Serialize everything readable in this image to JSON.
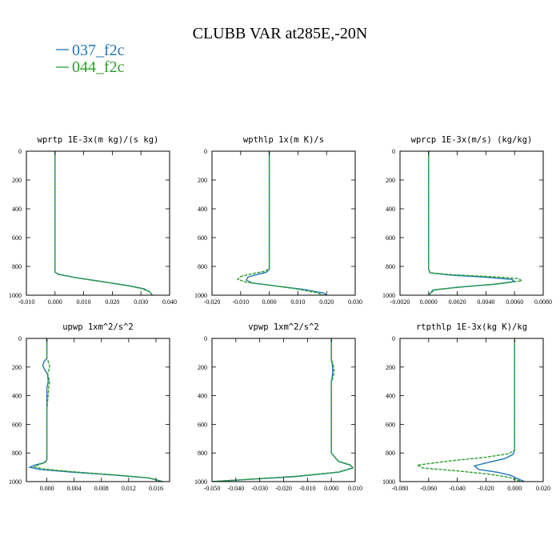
{
  "page": {
    "title": "CLUBB VAR at285E,-20N"
  },
  "legend": [
    {
      "name": "037_f2c",
      "color": "#1f77b4",
      "dash": false
    },
    {
      "name": "044_f2c",
      "color": "#2ca02c",
      "dash": true
    }
  ],
  "chart_data": [
    {
      "type": "line",
      "title": "wprtp  1E-3x(m kg)/(s kg)",
      "xlim": [
        -0.01,
        0.04
      ],
      "ylim": [
        1000,
        0
      ],
      "xticks": [
        "-0.010",
        "0.000",
        "0.010",
        "0.020",
        "0.030",
        "0.040"
      ],
      "xtick_values": [
        -0.01,
        0.0,
        0.01,
        0.02,
        0.03,
        0.04
      ],
      "yticks": [
        "0",
        "200",
        "400",
        "600",
        "800",
        "1000"
      ],
      "ytick_values": [
        0,
        200,
        400,
        600,
        800,
        1000
      ],
      "series": [
        {
          "name": "037_f2c",
          "x": [
            0,
            0,
            0,
            0,
            0,
            0,
            0.001,
            0.008,
            0.018,
            0.026,
            0.031,
            0.033,
            0.034
          ],
          "y": [
            0,
            200,
            400,
            600,
            800,
            840,
            855,
            880,
            910,
            935,
            955,
            975,
            1000
          ]
        },
        {
          "name": "044_f2c",
          "x": [
            0,
            0,
            0,
            0,
            0,
            0,
            0.001,
            0.007,
            0.017,
            0.025,
            0.03,
            0.033,
            0.034
          ],
          "y": [
            0,
            200,
            400,
            600,
            800,
            838,
            852,
            878,
            908,
            933,
            953,
            975,
            1000
          ]
        }
      ]
    },
    {
      "type": "line",
      "title": "wpthlp  1x(m K)/s",
      "xlim": [
        -0.02,
        0.03
      ],
      "ylim": [
        1000,
        0
      ],
      "xticks": [
        "-0.020",
        "-0.010",
        "0.000",
        "0.010",
        "0.020",
        "0.030"
      ],
      "xtick_values": [
        -0.02,
        -0.01,
        0.0,
        0.01,
        0.02,
        0.03
      ],
      "yticks": [
        "0",
        "200",
        "400",
        "600",
        "800",
        "1000"
      ],
      "ytick_values": [
        0,
        200,
        400,
        600,
        800,
        1000
      ],
      "series": [
        {
          "name": "037_f2c",
          "x": [
            0,
            0,
            0,
            0,
            0,
            -0.001,
            -0.005,
            -0.0075,
            -0.008,
            -0.006,
            0.002,
            0.012,
            0.019,
            0.02
          ],
          "y": [
            0,
            200,
            400,
            600,
            820,
            840,
            860,
            875,
            895,
            915,
            935,
            960,
            985,
            1000
          ]
        },
        {
          "name": "044_f2c",
          "x": [
            0,
            0,
            0,
            0,
            0,
            -0.002,
            -0.007,
            -0.01,
            -0.011,
            -0.008,
            0.0,
            0.009,
            0.016,
            0.019
          ],
          "y": [
            0,
            200,
            400,
            600,
            820,
            835,
            855,
            870,
            890,
            910,
            930,
            955,
            980,
            1000
          ]
        }
      ]
    },
    {
      "type": "line",
      "title": "wprcp  1E-3x(m/s) (kg/kg)",
      "xlim": [
        -0.002,
        0.008
      ],
      "ylim": [
        1000,
        0
      ],
      "xticks": [
        "-0.0020",
        "0.0000",
        "0.0020",
        "0.0040",
        "0.0060",
        "0.0080"
      ],
      "xtick_values": [
        -0.002,
        0.0,
        0.002,
        0.004,
        0.006,
        0.008
      ],
      "yticks": [
        "0",
        "200",
        "400",
        "600",
        "800",
        "1000"
      ],
      "ytick_values": [
        0,
        200,
        400,
        600,
        800,
        1000
      ],
      "series": [
        {
          "name": "037_f2c",
          "x": [
            0,
            0,
            0,
            0,
            0,
            0.0001,
            0.0015,
            0.004,
            0.0058,
            0.006,
            0.0045,
            0.002,
            0.0003,
            0
          ],
          "y": [
            0,
            200,
            400,
            600,
            820,
            845,
            860,
            875,
            890,
            905,
            925,
            945,
            965,
            1000
          ]
        },
        {
          "name": "044_f2c",
          "x": [
            0,
            0,
            0,
            0,
            0,
            0.0001,
            0.0017,
            0.0045,
            0.0063,
            0.0065,
            0.005,
            0.0024,
            0.0004,
            0
          ],
          "y": [
            0,
            200,
            400,
            600,
            820,
            845,
            858,
            872,
            885,
            900,
            920,
            942,
            962,
            1000
          ]
        }
      ]
    },
    {
      "type": "line",
      "title": "upwp  1xm^2/s^2",
      "xlim": [
        -0.003,
        0.018
      ],
      "ylim": [
        1000,
        0
      ],
      "xticks": [
        "0.000",
        "0.004",
        "0.008",
        "0.012",
        "0.016"
      ],
      "xtick_values": [
        0.0,
        0.004,
        0.008,
        0.012,
        0.016
      ],
      "yticks": [
        "0",
        "200",
        "400",
        "600",
        "800",
        "1000"
      ],
      "ytick_values": [
        0,
        200,
        400,
        600,
        800,
        1000
      ],
      "series": [
        {
          "name": "037_f2c",
          "x": [
            0,
            0,
            -0.0004,
            -0.0006,
            -0.0003,
            0.0001,
            0.0002,
            0,
            0,
            0,
            0,
            -0.0005,
            -0.0018,
            -0.0025,
            -0.001,
            0.004,
            0.01,
            0.015,
            0.017
          ],
          "y": [
            0,
            140,
            160,
            190,
            220,
            250,
            300,
            350,
            500,
            700,
            850,
            870,
            885,
            900,
            915,
            935,
            955,
            975,
            1000
          ]
        },
        {
          "name": "044_f2c",
          "x": [
            0,
            0,
            0.0002,
            0.0004,
            0.0003,
            0.0001,
            0.0004,
            0.0003,
            0,
            0,
            0,
            -0.0003,
            -0.0012,
            -0.0018,
            -0.0005,
            0.004,
            0.01,
            0.015,
            0.017
          ],
          "y": [
            0,
            140,
            160,
            190,
            220,
            250,
            300,
            330,
            500,
            700,
            850,
            868,
            882,
            897,
            912,
            932,
            953,
            974,
            1000
          ]
        }
      ]
    },
    {
      "type": "line",
      "title": "vpwp  1xm^2/s^2",
      "xlim": [
        -0.05,
        0.01
      ],
      "ylim": [
        1000,
        0
      ],
      "xticks": [
        "-0.050",
        "-0.040",
        "-0.030",
        "-0.020",
        "-0.010",
        "0.000",
        "0.010"
      ],
      "xtick_values": [
        -0.05,
        -0.04,
        -0.03,
        -0.02,
        -0.01,
        0.0,
        0.01
      ],
      "yticks": [
        "0",
        "200",
        "400",
        "600",
        "800",
        "1000"
      ],
      "ytick_values": [
        0,
        200,
        400,
        600,
        800,
        1000
      ],
      "series": [
        {
          "name": "037_f2c",
          "x": [
            0,
            0,
            0,
            0.0004,
            0.0006,
            0.0003,
            0,
            0,
            0,
            0,
            0.003,
            0.008,
            0.009,
            0.003,
            -0.015,
            -0.035,
            -0.05
          ],
          "y": [
            0,
            120,
            150,
            180,
            230,
            280,
            300,
            400,
            600,
            800,
            860,
            885,
            905,
            935,
            965,
            985,
            1000
          ]
        },
        {
          "name": "044_f2c",
          "x": [
            0,
            0,
            0,
            0.0008,
            0.0012,
            0.0006,
            0,
            0,
            0,
            0,
            0.003,
            0.008,
            0.009,
            0.003,
            -0.015,
            -0.035,
            -0.05
          ],
          "y": [
            0,
            120,
            150,
            180,
            230,
            280,
            300,
            400,
            600,
            800,
            858,
            883,
            903,
            933,
            963,
            984,
            1000
          ]
        }
      ]
    },
    {
      "type": "line",
      "title": "rtpthlp  1E-3x(kg K)/kg",
      "xlim": [
        -0.08,
        0.02
      ],
      "ylim": [
        1000,
        0
      ],
      "xticks": [
        "-0.080",
        "-0.060",
        "-0.040",
        "-0.020",
        "0.000",
        "0.020"
      ],
      "xtick_values": [
        -0.08,
        -0.06,
        -0.04,
        -0.02,
        0.0,
        0.02
      ],
      "yticks": [
        "0",
        "200",
        "400",
        "600",
        "800",
        "1000"
      ],
      "ytick_values": [
        0,
        200,
        400,
        600,
        800,
        1000
      ],
      "series": [
        {
          "name": "037_f2c",
          "x": [
            0,
            0,
            0,
            0,
            0,
            -0.001,
            -0.007,
            -0.018,
            -0.028,
            -0.025,
            -0.012,
            -0.003,
            0.001,
            0.007
          ],
          "y": [
            0,
            200,
            400,
            600,
            780,
            810,
            840,
            865,
            890,
            915,
            935,
            955,
            975,
            1000
          ]
        },
        {
          "name": "044_f2c",
          "x": [
            0,
            0,
            0,
            0,
            0,
            -0.004,
            -0.02,
            -0.045,
            -0.068,
            -0.064,
            -0.04,
            -0.018,
            -0.004,
            0.005
          ],
          "y": [
            0,
            200,
            400,
            600,
            780,
            805,
            830,
            855,
            885,
            905,
            925,
            948,
            970,
            1000
          ]
        }
      ]
    }
  ]
}
